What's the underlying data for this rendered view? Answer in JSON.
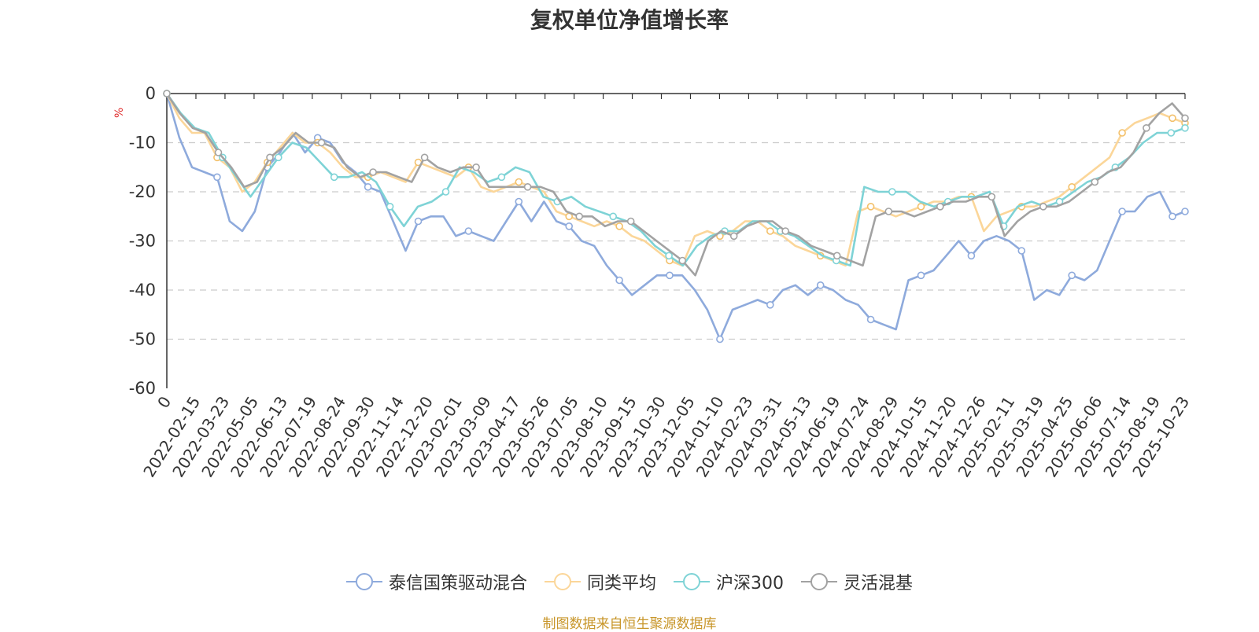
{
  "chart_data": {
    "type": "line",
    "title": "复权单位净值增长率",
    "ylabel": "%",
    "ylim": [
      -60,
      0
    ],
    "yticks": [
      0,
      -10,
      -20,
      -30,
      -40,
      -50,
      -60
    ],
    "grid": true,
    "legend_position": "bottom",
    "x_tick_labels": [
      "0",
      "2022-02-15",
      "2022-03-23",
      "2022-05-05",
      "2022-06-13",
      "2022-07-19",
      "2022-08-24",
      "2022-09-30",
      "2022-11-14",
      "2022-12-20",
      "2023-02-01",
      "2023-03-09",
      "2023-04-17",
      "2023-05-26",
      "2023-07-05",
      "2023-08-10",
      "2023-09-15",
      "2023-10-30",
      "2023-12-05",
      "2024-01-10",
      "2024-02-23",
      "2024-03-31",
      "2024-05-13",
      "2024-06-19",
      "2024-07-24",
      "2024-08-29",
      "2024-10-15",
      "2024-11-20",
      "2024-12-26",
      "2025-02-11",
      "2025-03-19",
      "2025-04-25",
      "2025-06-06",
      "2025-07-14",
      "2025-08-19",
      "2025-10-23"
    ],
    "series": [
      {
        "name": "泰信国策驱动混合",
        "color": "#8eaadc",
        "values": [
          0,
          -9,
          -15,
          -16,
          -17,
          -26,
          -28,
          -24,
          -15,
          -12,
          -8,
          -12,
          -9,
          -10,
          -14,
          -16,
          -19,
          -20,
          -26,
          -32,
          -26,
          -25,
          -25,
          -29,
          -28,
          -29,
          -30,
          -26,
          -22,
          -26,
          -22,
          -26,
          -27,
          -30,
          -31,
          -35,
          -38,
          -41,
          -39,
          -37,
          -37,
          -37,
          -40,
          -44,
          -50,
          -44,
          -43,
          -42,
          -43,
          -40,
          -39,
          -41,
          -39,
          -40,
          -42,
          -43,
          -46,
          -47,
          -48,
          -38,
          -37,
          -36,
          -33,
          -30,
          -33,
          -30,
          -29,
          -30,
          -32,
          -42,
          -40,
          -41,
          -37,
          -38,
          -36,
          -30,
          -24,
          -24,
          -21,
          -20,
          -25,
          -24
        ]
      },
      {
        "name": "同类平均",
        "color": "#fbd699",
        "values": [
          0,
          -5,
          -8,
          -8,
          -13,
          -15,
          -20,
          -18,
          -14,
          -11,
          -8,
          -10,
          -10,
          -12,
          -15,
          -17,
          -17,
          -16,
          -17,
          -18,
          -14,
          -15,
          -16,
          -17,
          -15,
          -19,
          -20,
          -19,
          -18,
          -19,
          -20,
          -24,
          -25,
          -26,
          -27,
          -26,
          -27,
          -29,
          -30,
          -32,
          -34,
          -35,
          -29,
          -28,
          -29,
          -28,
          -26,
          -26,
          -28,
          -29,
          -31,
          -32,
          -33,
          -34,
          -35,
          -24,
          -23,
          -24,
          -25,
          -24,
          -23,
          -22,
          -22,
          -21,
          -21,
          -28,
          -25,
          -24,
          -23,
          -23,
          -22,
          -21,
          -19,
          -17,
          -15,
          -13,
          -8,
          -6,
          -5,
          -4,
          -5,
          -6
        ]
      },
      {
        "name": "沪深300",
        "color": "#7ed3d6",
        "values": [
          0,
          -4,
          -7,
          -8,
          -13,
          -17,
          -21,
          -17,
          -13,
          -10,
          -11,
          -14,
          -17,
          -17,
          -16,
          -18,
          -23,
          -27,
          -23,
          -22,
          -20,
          -15,
          -16,
          -18,
          -17,
          -15,
          -16,
          -21,
          -22,
          -21,
          -23,
          -24,
          -25,
          -26,
          -28,
          -31,
          -33,
          -35,
          -31,
          -29,
          -28,
          -28,
          -26,
          -26,
          -28,
          -29,
          -31,
          -33,
          -34,
          -35,
          -19,
          -20,
          -20,
          -20,
          -22,
          -23,
          -22,
          -21,
          -21,
          -20,
          -27,
          -23,
          -22,
          -23,
          -22,
          -20,
          -18,
          -17,
          -15,
          -13,
          -10,
          -8,
          -8,
          -7
        ]
      },
      {
        "name": "灵活混基",
        "color": "#a2a2a2",
        "values": [
          0,
          -4,
          -7,
          -8,
          -12,
          -15,
          -19,
          -18,
          -13,
          -11,
          -8,
          -10,
          -10,
          -11,
          -15,
          -17,
          -16,
          -16,
          -17,
          -18,
          -13,
          -15,
          -16,
          -15,
          -15,
          -19,
          -19,
          -19,
          -19,
          -19,
          -20,
          -24,
          -25,
          -25,
          -27,
          -26,
          -26,
          -28,
          -30,
          -32,
          -34,
          -37,
          -30,
          -28,
          -29,
          -27,
          -26,
          -26,
          -28,
          -29,
          -31,
          -32,
          -33,
          -34,
          -35,
          -25,
          -24,
          -24,
          -25,
          -24,
          -23,
          -22,
          -22,
          -21,
          -21,
          -29,
          -26,
          -24,
          -23,
          -23,
          -22,
          -20,
          -18,
          -16,
          -15,
          -12,
          -7,
          -4,
          -2,
          -5
        ]
      }
    ]
  },
  "source_text": "制图数据来自恒生聚源数据库"
}
